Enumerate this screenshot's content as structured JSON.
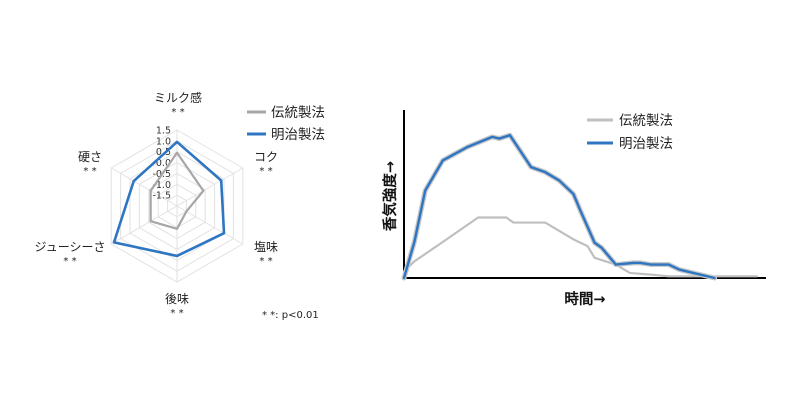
{
  "chart_data": [
    {
      "type": "radar",
      "axes": [
        {
          "label": "ミルク感",
          "sig": "* *"
        },
        {
          "label": "コク",
          "sig": "* *"
        },
        {
          "label": "塩味",
          "sig": "* *"
        },
        {
          "label": "後味",
          "sig": "* *"
        },
        {
          "label": "ジューシーさ",
          "sig": "* *"
        },
        {
          "label": "硬さ",
          "sig": "* *"
        }
      ],
      "scale_ticks": [
        "1.5",
        "1.0",
        "0.5",
        "0.0",
        "-0.5",
        "-1.0",
        "-1.5"
      ],
      "rlim": [
        -2.0,
        1.5
      ],
      "series": [
        {
          "name": "伝統製法",
          "color": "#a6a6a6",
          "values": [
            0.45,
            -0.6,
            -1.5,
            -0.95,
            -0.6,
            -0.6
          ]
        },
        {
          "name": "明治製法",
          "color": "#2e75c2",
          "values": [
            0.95,
            0.35,
            0.5,
            0.3,
            1.35,
            0.3
          ]
        }
      ],
      "note": "* *: p<0.01"
    },
    {
      "type": "line",
      "xlabel": "時間→",
      "ylabel": "香気強度→",
      "xlim": [
        0,
        100
      ],
      "ylim": [
        0,
        100
      ],
      "series": [
        {
          "name": "伝統製法",
          "color": "#bfbfbf",
          "x": [
            0,
            3,
            10,
            21,
            29,
            31,
            33,
            40,
            48,
            52,
            54,
            60,
            64,
            70,
            75,
            100
          ],
          "y": [
            4,
            10,
            20,
            36,
            36,
            33,
            33,
            33,
            23,
            19,
            12,
            8,
            3,
            2,
            1,
            1
          ]
        },
        {
          "name": "明治製法",
          "color": "#2e75c2",
          "x": [
            0,
            3,
            6,
            11,
            18,
            25,
            27,
            30,
            36,
            40,
            44,
            48,
            50,
            54,
            56,
            60,
            65,
            67,
            70,
            75,
            78,
            80,
            88
          ],
          "y": [
            0,
            22,
            52,
            70,
            78,
            84,
            83,
            85,
            66,
            63,
            58,
            50,
            40,
            21,
            18,
            8,
            9,
            9,
            8,
            8,
            5,
            4,
            0
          ]
        }
      ]
    }
  ]
}
